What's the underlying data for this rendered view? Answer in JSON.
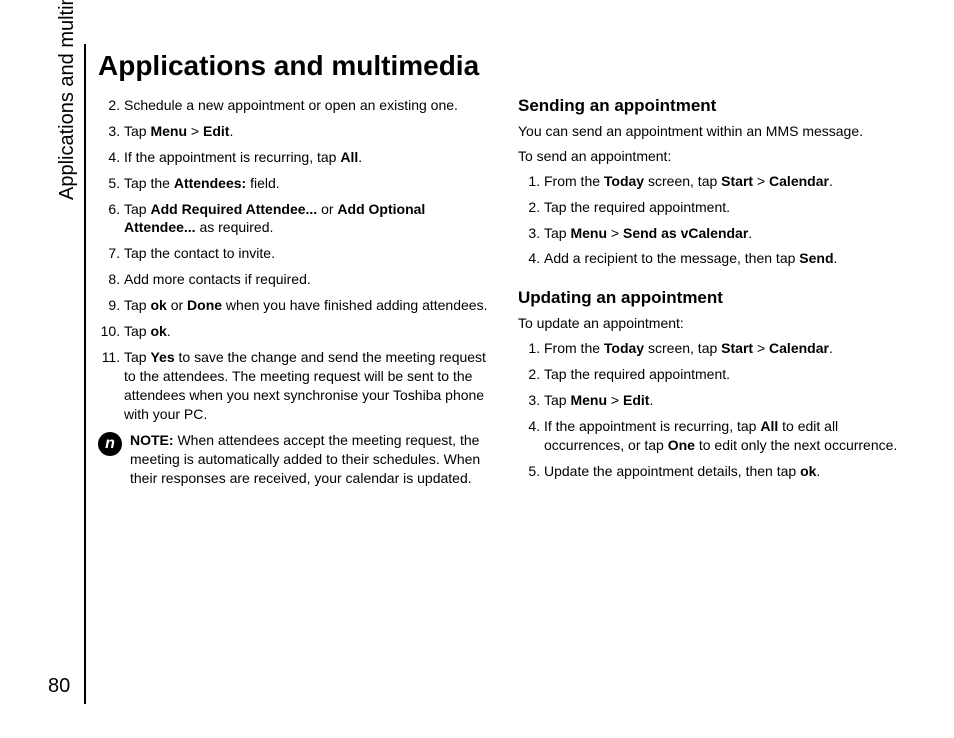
{
  "sideLabel": "Applications and multimedia",
  "pageNumber": "80",
  "title": "Applications and multimedia",
  "left": {
    "startIndex": 2,
    "steps": [
      "Schedule a new appointment or open an existing one.",
      "Tap <b>Menu</b> > <b>Edit</b>.",
      "If the appointment is recurring, tap <b>All</b>.",
      "Tap the <b>Attendees:</b> field.",
      "Tap <b>Add Required Attendee...</b> or <b>Add Optional Attendee...</b> as required.",
      "Tap the contact to invite.",
      "Add more contacts if required.",
      "Tap <b>ok</b> or <b>Done</b> when you have finished adding attendees.",
      "Tap <b>ok</b>.",
      "Tap <b>Yes</b> to save the change and send the meeting request to the attendees. The meeting request will be sent to the attendees when you next synchronise your Toshiba phone with your PC."
    ],
    "noteLabel": "NOTE:",
    "noteText": " When attendees accept the meeting request, the meeting is automatically added to their schedules. When their responses are received, your calendar is updated.",
    "noteIconGlyph": "n"
  },
  "right": {
    "sections": [
      {
        "heading": "Sending an appointment",
        "paras": [
          "You can send an appointment within an MMS message.",
          "To send an appointment:"
        ],
        "steps": [
          "From the <b>Today</b> screen, tap <b>Start</b> > <b>Calendar</b>.",
          "Tap the required appointment.",
          "Tap <b>Menu</b> > <b>Send as vCalendar</b>.",
          "Add a recipient to the message, then tap <b>Send</b>."
        ]
      },
      {
        "heading": "Updating an appointment",
        "paras": [
          "To update an appointment:"
        ],
        "steps": [
          "From the <b>Today</b> screen, tap <b>Start</b> > <b>Calendar</b>.",
          "Tap the required appointment.",
          "Tap <b>Menu</b> > <b>Edit</b>.",
          "If the appointment is recurring, tap <b>All</b> to edit all occurrences, or tap <b>One</b> to edit only the next occurrence.",
          "Update the appointment details, then tap <b>ok</b>."
        ]
      }
    ]
  }
}
